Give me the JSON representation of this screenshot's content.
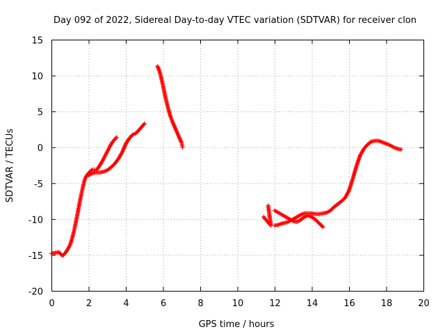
{
  "chart_data": {
    "type": "scatter",
    "title": "Day 092 of 2022, Sidereal Day-to-day VTEC variation (SDTVAR) for receiver clon",
    "xlabel": "GPS time / hours",
    "ylabel": "SDTVAR / TECUs",
    "xlim": [
      0,
      20
    ],
    "ylim": [
      -20,
      15
    ],
    "xticks": [
      "0",
      "2",
      "4",
      "6",
      "8",
      "10",
      "12",
      "14",
      "16",
      "18",
      "20"
    ],
    "yticks": [
      "-20",
      "-15",
      "-10",
      "-5",
      "0",
      "5",
      "10",
      "15"
    ],
    "grid": true,
    "marker": "plus",
    "color": "#ff0000",
    "series": [
      {
        "name": "segment-1",
        "x": [
          0.0,
          0.2,
          0.4,
          0.5,
          0.6,
          0.75,
          0.9,
          1.0,
          1.1,
          1.2,
          1.3,
          1.4,
          1.5,
          1.6,
          1.7,
          1.8,
          1.9,
          2.0,
          2.1,
          2.2,
          2.3,
          2.4,
          2.5,
          2.6,
          2.7,
          2.8,
          2.9,
          3.0,
          3.1,
          3.2,
          3.3,
          3.4,
          3.5
        ],
        "y": [
          -14.8,
          -14.7,
          -14.6,
          -14.9,
          -15.1,
          -14.7,
          -14.1,
          -13.6,
          -12.8,
          -11.8,
          -10.6,
          -9.3,
          -7.9,
          -6.6,
          -5.4,
          -4.4,
          -3.9,
          -3.6,
          -3.3,
          -3.1,
          -3.1,
          -3.2,
          -2.9,
          -2.5,
          -2.1,
          -1.6,
          -1.1,
          -0.6,
          -0.1,
          0.4,
          0.8,
          1.1,
          1.4
        ]
      },
      {
        "name": "segment-2",
        "x": [
          2.0,
          2.2,
          2.4,
          2.6,
          2.8,
          3.0,
          3.2,
          3.4,
          3.6,
          3.8,
          3.9,
          4.0,
          4.1,
          4.2,
          4.3,
          4.4,
          4.5,
          4.6,
          4.7,
          4.8,
          4.9,
          5.0
        ],
        "y": [
          -3.9,
          -3.6,
          -3.5,
          -3.5,
          -3.4,
          -3.2,
          -2.8,
          -2.3,
          -1.6,
          -0.7,
          -0.1,
          0.5,
          0.9,
          1.3,
          1.6,
          1.8,
          1.9,
          2.1,
          2.4,
          2.7,
          3.0,
          3.3
        ]
      },
      {
        "name": "segment-3",
        "x": [
          5.7,
          5.8,
          5.9,
          6.0,
          6.1,
          6.2,
          6.3,
          6.4,
          6.5,
          6.6,
          6.7,
          6.8,
          6.9,
          7.0,
          7.05
        ],
        "y": [
          11.3,
          10.7,
          9.7,
          8.6,
          7.3,
          6.2,
          5.2,
          4.3,
          3.6,
          3.0,
          2.4,
          1.8,
          1.2,
          0.6,
          0.0
        ]
      },
      {
        "name": "segment-4",
        "x": [
          11.4,
          11.5,
          11.6,
          11.7,
          11.8,
          11.65
        ],
        "y": [
          -9.7,
          -10.0,
          -10.3,
          -10.6,
          -10.9,
          -8.1
        ]
      },
      {
        "name": "segment-5",
        "x": [
          12.0,
          12.2,
          12.4,
          12.6,
          12.8,
          13.0,
          13.2,
          13.4,
          13.6,
          13.8,
          14.0,
          14.2,
          14.4,
          14.6,
          14.8,
          15.0,
          15.2,
          15.4,
          15.6,
          15.8,
          16.0,
          16.2,
          16.4,
          16.6,
          16.8,
          17.0,
          17.2,
          17.4,
          17.6,
          17.8,
          18.0,
          18.2,
          18.4,
          18.6,
          18.8
        ],
        "y": [
          -10.9,
          -10.8,
          -10.6,
          -10.5,
          -10.3,
          -10.0,
          -9.7,
          -9.4,
          -9.2,
          -9.2,
          -9.2,
          -9.3,
          -9.3,
          -9.2,
          -9.1,
          -8.8,
          -8.3,
          -7.9,
          -7.5,
          -7.0,
          -6.0,
          -4.4,
          -2.6,
          -1.1,
          -0.2,
          0.4,
          0.8,
          0.9,
          0.9,
          0.7,
          0.5,
          0.3,
          0.0,
          -0.2,
          -0.3
        ]
      },
      {
        "name": "segment-6",
        "x": [
          12.0,
          12.2,
          12.4,
          12.6,
          12.8,
          13.0,
          13.2,
          13.4,
          13.6,
          13.8,
          14.0,
          14.2,
          14.4,
          14.6
        ],
        "y": [
          -8.8,
          -9.1,
          -9.4,
          -9.7,
          -10.0,
          -10.3,
          -10.4,
          -10.1,
          -9.7,
          -9.5,
          -9.7,
          -10.1,
          -10.6,
          -11.1
        ]
      }
    ]
  }
}
